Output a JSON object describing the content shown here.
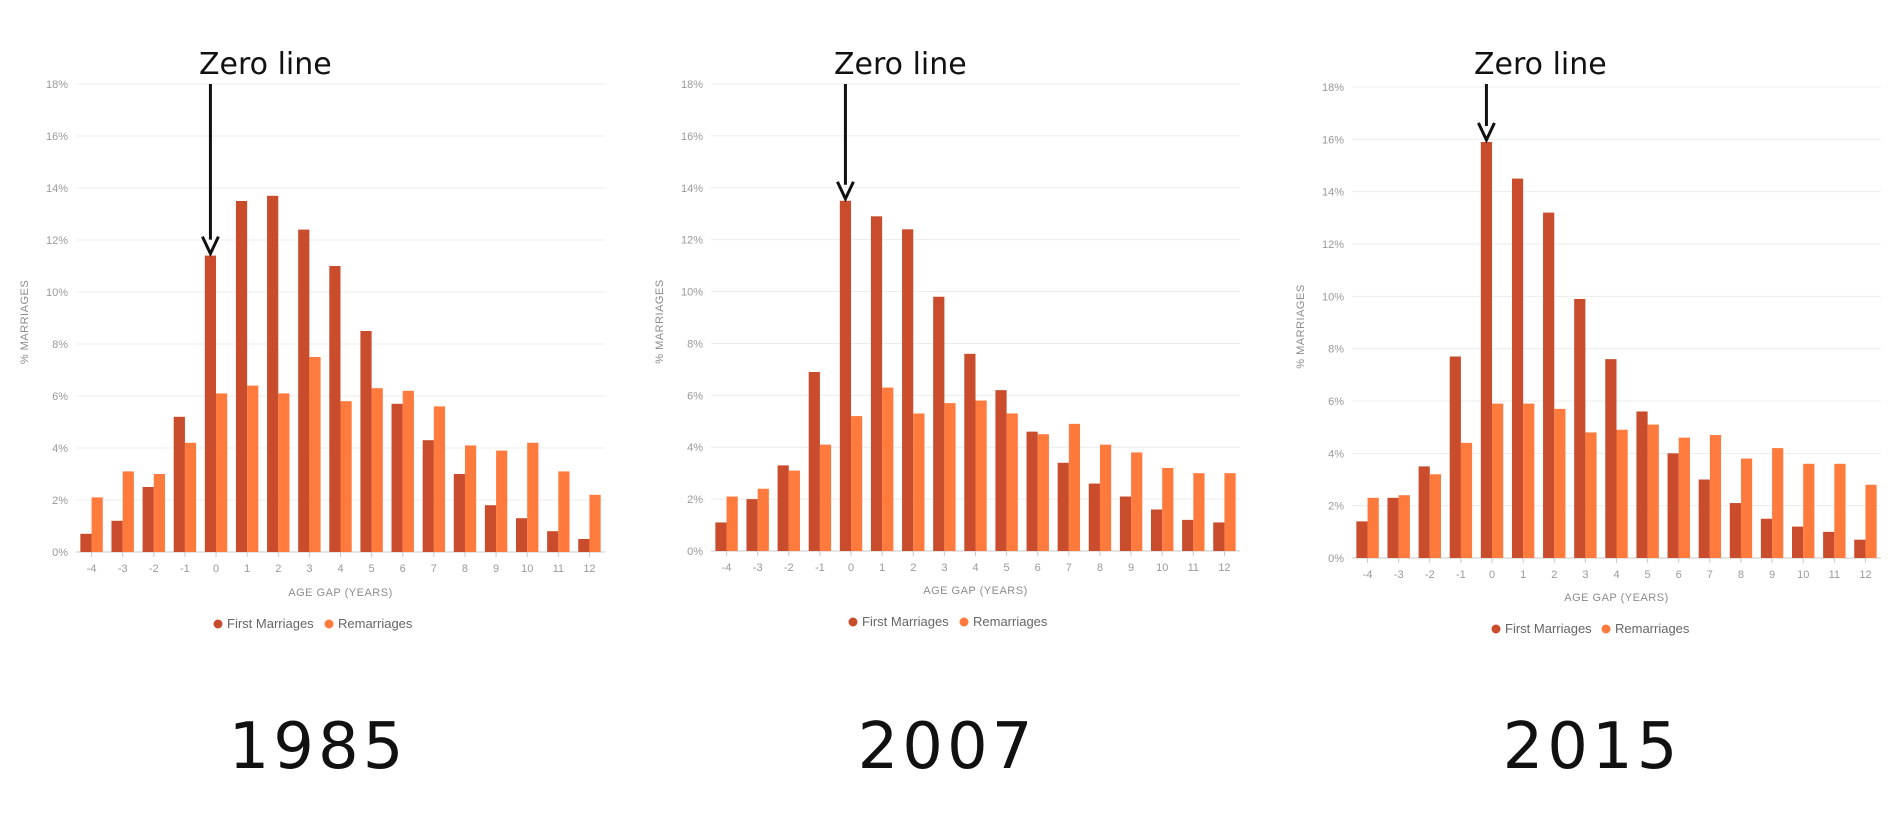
{
  "colors": {
    "first": "#c94c2c",
    "remarriage": "#ff7a3d",
    "arrow": "#111111"
  },
  "chart_data": [
    {
      "type": "bar",
      "year_label": "1985",
      "annotation": "Zero line",
      "annotation_category": "0",
      "categories": [
        "-4",
        "-3",
        "-2",
        "-1",
        "0",
        "1",
        "2",
        "3",
        "4",
        "5",
        "6",
        "7",
        "8",
        "9",
        "10",
        "11",
        "12"
      ],
      "series": [
        {
          "name": "First Marriages",
          "values": [
            0.7,
            1.2,
            2.5,
            5.2,
            11.4,
            13.5,
            13.7,
            12.4,
            11.0,
            8.5,
            5.7,
            4.3,
            3.0,
            1.8,
            1.3,
            0.8,
            0.5
          ]
        },
        {
          "name": "Remarriages",
          "values": [
            2.1,
            3.1,
            3.0,
            4.2,
            6.1,
            6.4,
            6.1,
            7.5,
            5.8,
            6.3,
            6.2,
            5.6,
            4.1,
            3.9,
            4.2,
            3.1,
            2.2
          ]
        }
      ],
      "xlabel": "AGE GAP (YEARS)",
      "ylabel": "% MARRIAGES",
      "ylim": [
        0,
        18
      ],
      "yticks": [
        "0%",
        "2%",
        "4%",
        "6%",
        "8%",
        "10%",
        "12%",
        "14%",
        "16%",
        "18%"
      ],
      "grid": true,
      "legend": "bottom-center"
    },
    {
      "type": "bar",
      "year_label": "2007",
      "annotation": "Zero line",
      "annotation_category": "0",
      "categories": [
        "-4",
        "-3",
        "-2",
        "-1",
        "0",
        "1",
        "2",
        "3",
        "4",
        "5",
        "6",
        "7",
        "8",
        "9",
        "10",
        "11",
        "12"
      ],
      "series": [
        {
          "name": "First Marriages",
          "values": [
            1.1,
            2.0,
            3.3,
            6.9,
            13.5,
            12.9,
            12.4,
            9.8,
            7.6,
            6.2,
            4.6,
            3.4,
            2.6,
            2.1,
            1.6,
            1.2,
            1.1
          ]
        },
        {
          "name": "Remarriages",
          "values": [
            2.1,
            2.4,
            3.1,
            4.1,
            5.2,
            6.3,
            5.3,
            5.7,
            5.8,
            5.3,
            4.5,
            4.9,
            4.1,
            3.8,
            3.2,
            3.0,
            3.0
          ]
        }
      ],
      "xlabel": "AGE GAP (YEARS)",
      "ylabel": "% MARRIAGES",
      "ylim": [
        0,
        18
      ],
      "yticks": [
        "0%",
        "2%",
        "4%",
        "6%",
        "8%",
        "10%",
        "12%",
        "14%",
        "16%",
        "18%"
      ],
      "grid": true,
      "legend": "bottom-center"
    },
    {
      "type": "bar",
      "year_label": "2015",
      "annotation": "Zero line",
      "annotation_category": "0",
      "categories": [
        "-4",
        "-3",
        "-2",
        "-1",
        "0",
        "1",
        "2",
        "3",
        "4",
        "5",
        "6",
        "7",
        "8",
        "9",
        "10",
        "11",
        "12"
      ],
      "series": [
        {
          "name": "First Marriages",
          "values": [
            1.4,
            2.3,
            3.5,
            7.7,
            15.9,
            14.5,
            13.2,
            9.9,
            7.6,
            5.6,
            4.0,
            3.0,
            2.1,
            1.5,
            1.2,
            1.0,
            0.7
          ]
        },
        {
          "name": "Remarriages",
          "values": [
            2.3,
            2.4,
            3.2,
            4.4,
            5.9,
            5.9,
            5.7,
            4.8,
            4.9,
            5.1,
            4.6,
            4.7,
            3.8,
            4.2,
            3.6,
            3.6,
            2.8
          ]
        }
      ],
      "xlabel": "AGE GAP (YEARS)",
      "ylabel": "% MARRIAGES",
      "ylim": [
        0,
        18
      ],
      "yticks": [
        "0%",
        "2%",
        "4%",
        "6%",
        "8%",
        "10%",
        "12%",
        "14%",
        "16%",
        "18%"
      ],
      "grid": true,
      "legend": "bottom-center"
    }
  ]
}
